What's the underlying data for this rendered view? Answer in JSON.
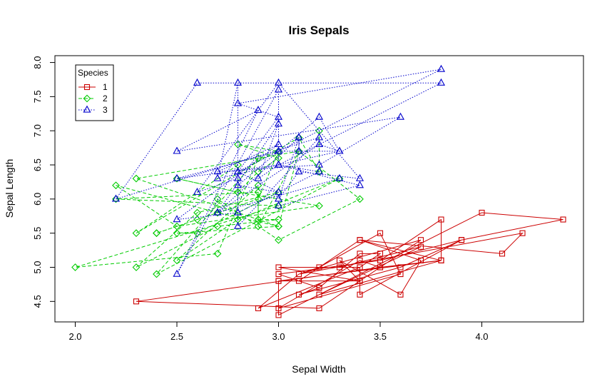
{
  "chart_data": {
    "type": "line",
    "title": "Iris Sepals",
    "xlabel": "Sepal Width",
    "ylabel": "Sepal Length",
    "xlim": [
      1.9,
      4.5
    ],
    "ylim": [
      4.2,
      8.1
    ],
    "xticks": [
      2.0,
      2.5,
      3.0,
      3.5,
      4.0
    ],
    "yticks": [
      4.5,
      5.0,
      5.5,
      6.0,
      6.5,
      7.0,
      7.5,
      8.0
    ],
    "grid": false,
    "legend": {
      "title": "Species",
      "placement": "top-left",
      "entries": [
        "1",
        "2",
        "3"
      ]
    },
    "series": [
      {
        "name": "1",
        "color": "#cc0000",
        "marker": "square",
        "line_style": "solid",
        "x": [
          3.5,
          3.0,
          3.2,
          3.1,
          3.6,
          3.9,
          3.4,
          3.4,
          2.9,
          3.1,
          3.7,
          3.4,
          3.0,
          3.0,
          4.0,
          4.4,
          3.9,
          3.5,
          3.8,
          3.8,
          3.4,
          3.7,
          3.6,
          3.3,
          3.4,
          3.0,
          3.4,
          3.5,
          3.4,
          3.2,
          3.1,
          3.4,
          4.1,
          4.2,
          3.1,
          3.2,
          3.5,
          3.6,
          3.0,
          3.4,
          3.5,
          2.3,
          3.2,
          3.5,
          3.8,
          3.0,
          3.8,
          3.2,
          3.7,
          3.3
        ],
        "y": [
          5.1,
          4.9,
          4.7,
          4.6,
          5.0,
          5.4,
          4.6,
          5.0,
          4.4,
          4.9,
          5.4,
          4.8,
          4.8,
          4.3,
          5.8,
          5.7,
          5.4,
          5.1,
          5.7,
          5.1,
          5.4,
          5.1,
          4.6,
          5.1,
          4.8,
          5.0,
          5.0,
          5.2,
          5.2,
          4.7,
          4.8,
          5.4,
          5.2,
          5.5,
          4.9,
          5.0,
          5.5,
          4.9,
          4.4,
          5.1,
          5.0,
          4.5,
          4.4,
          5.0,
          5.1,
          4.8,
          5.1,
          4.6,
          5.3,
          5.0
        ]
      },
      {
        "name": "2",
        "color": "#00cc00",
        "marker": "diamond",
        "line_style": "dashed",
        "x": [
          3.2,
          3.2,
          3.1,
          2.3,
          2.8,
          2.8,
          3.3,
          2.4,
          2.9,
          2.7,
          2.0,
          3.0,
          2.2,
          2.9,
          2.9,
          3.1,
          3.0,
          2.7,
          2.2,
          2.5,
          3.2,
          2.8,
          2.5,
          2.8,
          2.9,
          3.0,
          2.8,
          3.0,
          2.9,
          2.6,
          2.4,
          2.4,
          2.7,
          2.7,
          3.0,
          3.4,
          3.1,
          2.3,
          3.0,
          2.5,
          2.6,
          3.0,
          2.6,
          2.3,
          2.7,
          3.0,
          2.9,
          2.9,
          2.5,
          2.8
        ],
        "y": [
          7.0,
          6.4,
          6.9,
          5.5,
          6.5,
          5.7,
          6.3,
          4.9,
          6.6,
          5.2,
          5.0,
          5.9,
          6.0,
          6.1,
          5.6,
          6.7,
          5.6,
          5.8,
          6.2,
          5.6,
          5.9,
          6.1,
          6.3,
          6.1,
          6.4,
          6.6,
          6.8,
          6.7,
          6.0,
          5.7,
          5.5,
          5.5,
          5.8,
          6.0,
          5.4,
          6.0,
          6.7,
          6.3,
          5.6,
          5.5,
          5.5,
          6.1,
          5.8,
          5.0,
          5.6,
          5.7,
          5.7,
          6.2,
          5.1,
          5.7
        ]
      },
      {
        "name": "3",
        "color": "#0000cc",
        "marker": "triangle",
        "line_style": "dotted",
        "x": [
          3.3,
          2.7,
          3.0,
          2.9,
          3.0,
          3.0,
          2.5,
          2.9,
          2.5,
          3.6,
          3.2,
          2.7,
          3.0,
          2.5,
          2.8,
          3.2,
          3.0,
          3.8,
          2.6,
          2.2,
          3.2,
          2.8,
          2.8,
          2.7,
          3.3,
          3.2,
          2.8,
          3.0,
          2.8,
          3.0,
          2.8,
          3.8,
          2.8,
          2.8,
          2.6,
          3.0,
          3.4,
          3.1,
          3.0,
          3.1,
          3.1,
          3.1,
          2.7,
          3.2,
          3.3,
          3.0,
          2.5,
          3.0,
          3.4,
          3.0
        ],
        "y": [
          6.3,
          5.8,
          7.1,
          6.3,
          6.5,
          7.6,
          4.9,
          7.3,
          6.7,
          7.2,
          6.5,
          6.4,
          6.8,
          5.7,
          5.8,
          6.4,
          6.5,
          7.7,
          7.7,
          6.0,
          6.9,
          5.6,
          7.7,
          6.3,
          6.7,
          7.2,
          6.2,
          6.1,
          6.4,
          7.2,
          7.4,
          7.9,
          6.4,
          6.3,
          6.1,
          7.7,
          6.3,
          6.4,
          6.0,
          6.9,
          6.7,
          6.9,
          5.8,
          6.8,
          6.7,
          6.7,
          6.3,
          6.5,
          6.2,
          5.9
        ]
      }
    ]
  }
}
